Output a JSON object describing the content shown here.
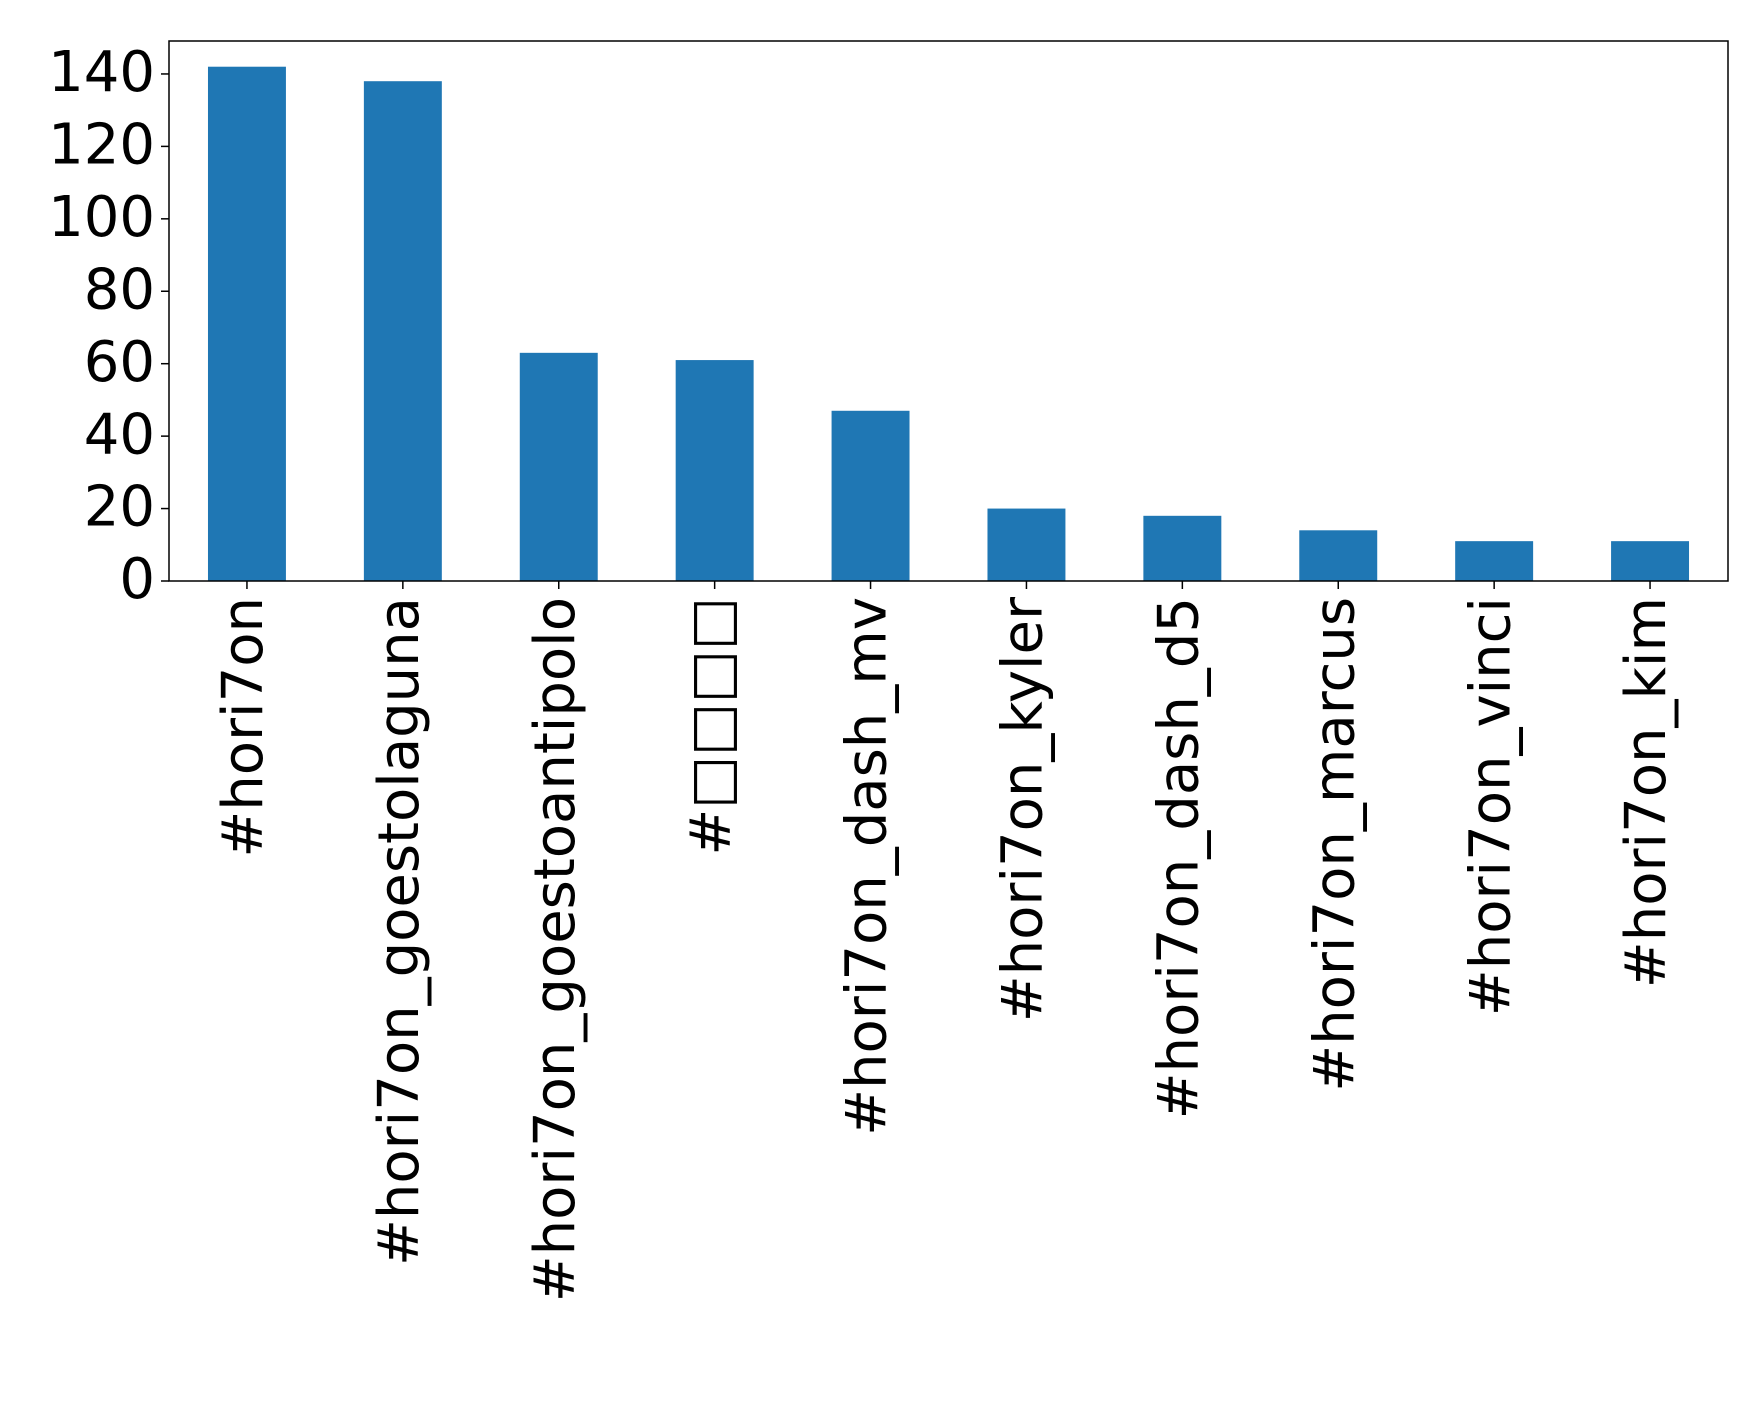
{
  "chart_data": {
    "type": "bar",
    "categories": [
      "#hori7on",
      "#hori7on_goestolaguna",
      "#hori7on_goestoantipolo",
      "#□□□□",
      "#hori7on_dash_mv",
      "#hori7on_kyler",
      "#hori7on_dash_d5",
      "#hori7on_marcus",
      "#hori7on_vinci",
      "#hori7on_kim"
    ],
    "values": [
      142,
      138,
      63,
      61,
      47,
      20,
      18,
      14,
      11,
      11
    ],
    "color": "#1f77b4",
    "ylim": [
      0,
      149.1
    ],
    "yticks": [
      0,
      20,
      40,
      60,
      80,
      100,
      120,
      140
    ],
    "grid": false
  }
}
